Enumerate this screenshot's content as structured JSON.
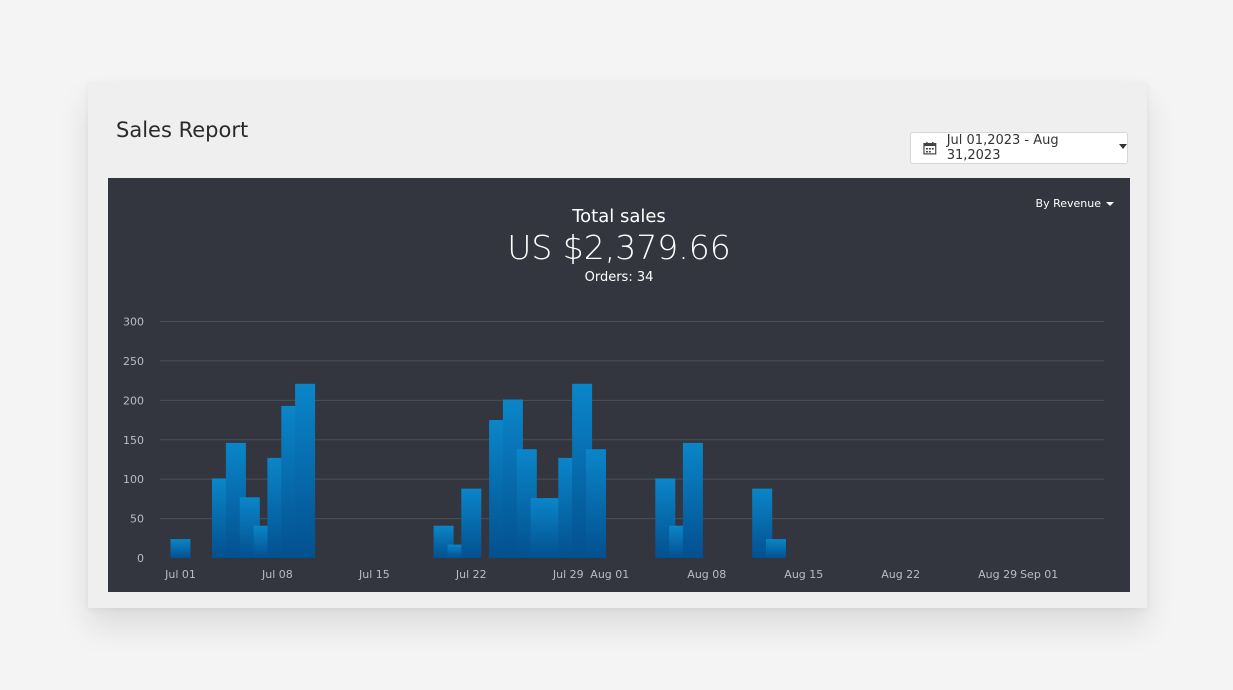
{
  "header": {
    "title": "Sales Report",
    "date_range": "Jul 01,2023 - Aug 31,2023",
    "calendar_icon": "calendar-icon",
    "dropdown_icon": "caret-down-icon"
  },
  "summary": {
    "label": "Total sales",
    "value": "US $2,379.66",
    "orders": "Orders: 34"
  },
  "metric_selector": {
    "label": "By Revenue"
  },
  "colors": {
    "page": "#f4f4f4",
    "card": "#efefef",
    "panel": "#33363e",
    "bar_top": "#0a86c9",
    "bar_bottom": "#03508f",
    "grid": "#4b4f58"
  },
  "chart_data": {
    "type": "bar",
    "y_ticks": [
      0,
      50,
      100,
      150,
      200,
      250,
      300
    ],
    "ylim": [
      0,
      300
    ],
    "x_tick_labels": [
      "Jul 01",
      "Jul 08",
      "Jul 15",
      "Jul 22",
      "Jul 29",
      "Aug 01",
      "Aug 08",
      "Aug 15",
      "Aug 22",
      "Aug 29",
      "Sep 01"
    ],
    "grid": true,
    "series": [
      {
        "points": [
          {
            "date": "2023-07-01",
            "value": 24
          },
          {
            "date": "2023-07-04",
            "value": 101
          },
          {
            "date": "2023-07-05",
            "value": 146
          },
          {
            "date": "2023-07-06",
            "value": 77
          },
          {
            "date": "2023-07-07",
            "value": 41
          },
          {
            "date": "2023-07-08",
            "value": 127
          },
          {
            "date": "2023-07-09",
            "value": 193
          },
          {
            "date": "2023-07-10",
            "value": 221
          },
          {
            "date": "2023-07-20",
            "value": 41
          },
          {
            "date": "2023-07-21",
            "value": 17
          },
          {
            "date": "2023-07-22",
            "value": 88
          },
          {
            "date": "2023-07-24",
            "value": 175
          },
          {
            "date": "2023-07-25",
            "value": 201
          },
          {
            "date": "2023-07-26",
            "value": 138
          },
          {
            "date": "2023-07-27",
            "value": 76
          },
          {
            "date": "2023-07-28",
            "value": 76
          },
          {
            "date": "2023-07-29",
            "value": 127
          },
          {
            "date": "2023-07-30",
            "value": 221
          },
          {
            "date": "2023-07-31",
            "value": 138
          },
          {
            "date": "2023-08-05",
            "value": 101
          },
          {
            "date": "2023-08-06",
            "value": 41
          },
          {
            "date": "2023-08-07",
            "value": 146
          },
          {
            "date": "2023-08-12",
            "value": 88
          },
          {
            "date": "2023-08-13",
            "value": 24
          }
        ]
      }
    ]
  }
}
